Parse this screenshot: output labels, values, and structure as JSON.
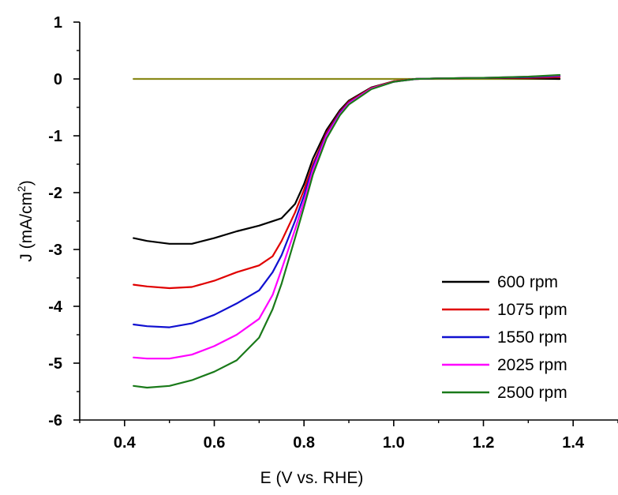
{
  "chart_data": {
    "type": "line",
    "xlabel": "E (V vs. RHE)",
    "ylabel_main": "J (mA/cm",
    "ylabel_sup": "2",
    "ylabel_close": ")",
    "xlim": [
      0.3,
      1.5
    ],
    "ylim": [
      -6,
      1
    ],
    "x_ticks": [
      0.4,
      0.6,
      0.8,
      1.0,
      1.2,
      1.4
    ],
    "x_tick_labels": [
      "0.4",
      "0.6",
      "0.8",
      "1.0",
      "1.2",
      "1.4"
    ],
    "y_ticks": [
      1,
      0,
      -1,
      -2,
      -3,
      -4,
      -5,
      -6
    ],
    "y_tick_labels": [
      "1",
      "0",
      "-1",
      "-2",
      "-3",
      "-4",
      "-5",
      "-6"
    ],
    "legend_position": "bottom-right",
    "series": [
      {
        "name": "600 rpm",
        "color": "#000000",
        "x": [
          0.42,
          0.45,
          0.5,
          0.55,
          0.6,
          0.65,
          0.7,
          0.75,
          0.78,
          0.8,
          0.82,
          0.85,
          0.88,
          0.9,
          0.95,
          1.0,
          1.05,
          1.1,
          1.2,
          1.3,
          1.37
        ],
        "y": [
          -2.8,
          -2.85,
          -2.9,
          -2.9,
          -2.8,
          -2.68,
          -2.58,
          -2.45,
          -2.2,
          -1.85,
          -1.4,
          -0.9,
          -0.55,
          -0.38,
          -0.15,
          -0.04,
          0.0,
          0.01,
          0.02,
          0.01,
          0.0
        ]
      },
      {
        "name": "1075 rpm",
        "color": "#e00000",
        "x": [
          0.42,
          0.45,
          0.5,
          0.55,
          0.6,
          0.65,
          0.7,
          0.73,
          0.75,
          0.78,
          0.8,
          0.82,
          0.85,
          0.88,
          0.9,
          0.95,
          1.0,
          1.05,
          1.1,
          1.2,
          1.3,
          1.37
        ],
        "y": [
          -3.62,
          -3.65,
          -3.68,
          -3.66,
          -3.55,
          -3.4,
          -3.28,
          -3.12,
          -2.85,
          -2.35,
          -1.95,
          -1.5,
          -0.95,
          -0.58,
          -0.4,
          -0.16,
          -0.04,
          0.0,
          0.01,
          0.02,
          0.02,
          0.03
        ]
      },
      {
        "name": "1550 rpm",
        "color": "#1010d0",
        "x": [
          0.42,
          0.45,
          0.5,
          0.55,
          0.6,
          0.65,
          0.7,
          0.73,
          0.75,
          0.78,
          0.8,
          0.82,
          0.85,
          0.88,
          0.9,
          0.95,
          1.0,
          1.05,
          1.1,
          1.2,
          1.3,
          1.37
        ],
        "y": [
          -4.32,
          -4.35,
          -4.37,
          -4.3,
          -4.15,
          -3.95,
          -3.72,
          -3.4,
          -3.1,
          -2.5,
          -2.05,
          -1.55,
          -0.98,
          -0.6,
          -0.42,
          -0.17,
          -0.05,
          0.0,
          0.01,
          0.02,
          0.03,
          0.05
        ]
      },
      {
        "name": "2025 rpm",
        "color": "#ff00ff",
        "x": [
          0.42,
          0.45,
          0.5,
          0.55,
          0.6,
          0.65,
          0.7,
          0.73,
          0.75,
          0.78,
          0.8,
          0.82,
          0.85,
          0.88,
          0.9,
          0.95,
          1.0,
          1.05,
          1.1,
          1.2,
          1.3,
          1.37
        ],
        "y": [
          -4.9,
          -4.92,
          -4.92,
          -4.85,
          -4.7,
          -4.5,
          -4.22,
          -3.8,
          -3.35,
          -2.65,
          -2.15,
          -1.6,
          -1.0,
          -0.62,
          -0.43,
          -0.17,
          -0.05,
          0.0,
          0.01,
          0.02,
          0.04,
          0.06
        ]
      },
      {
        "name": "2500 rpm",
        "color": "#1a7a1a",
        "x": [
          0.42,
          0.45,
          0.5,
          0.55,
          0.6,
          0.65,
          0.7,
          0.73,
          0.75,
          0.78,
          0.8,
          0.82,
          0.85,
          0.88,
          0.9,
          0.95,
          1.0,
          1.05,
          1.1,
          1.2,
          1.3,
          1.37
        ],
        "y": [
          -5.4,
          -5.43,
          -5.4,
          -5.3,
          -5.15,
          -4.95,
          -4.55,
          -4.05,
          -3.6,
          -2.8,
          -2.25,
          -1.68,
          -1.05,
          -0.64,
          -0.45,
          -0.18,
          -0.05,
          0.0,
          0.01,
          0.02,
          0.04,
          0.07
        ]
      },
      {
        "name": "",
        "color": "#8a8a1a",
        "x": [
          0.42,
          1.37
        ],
        "y": [
          0.0,
          0.0
        ]
      }
    ]
  }
}
